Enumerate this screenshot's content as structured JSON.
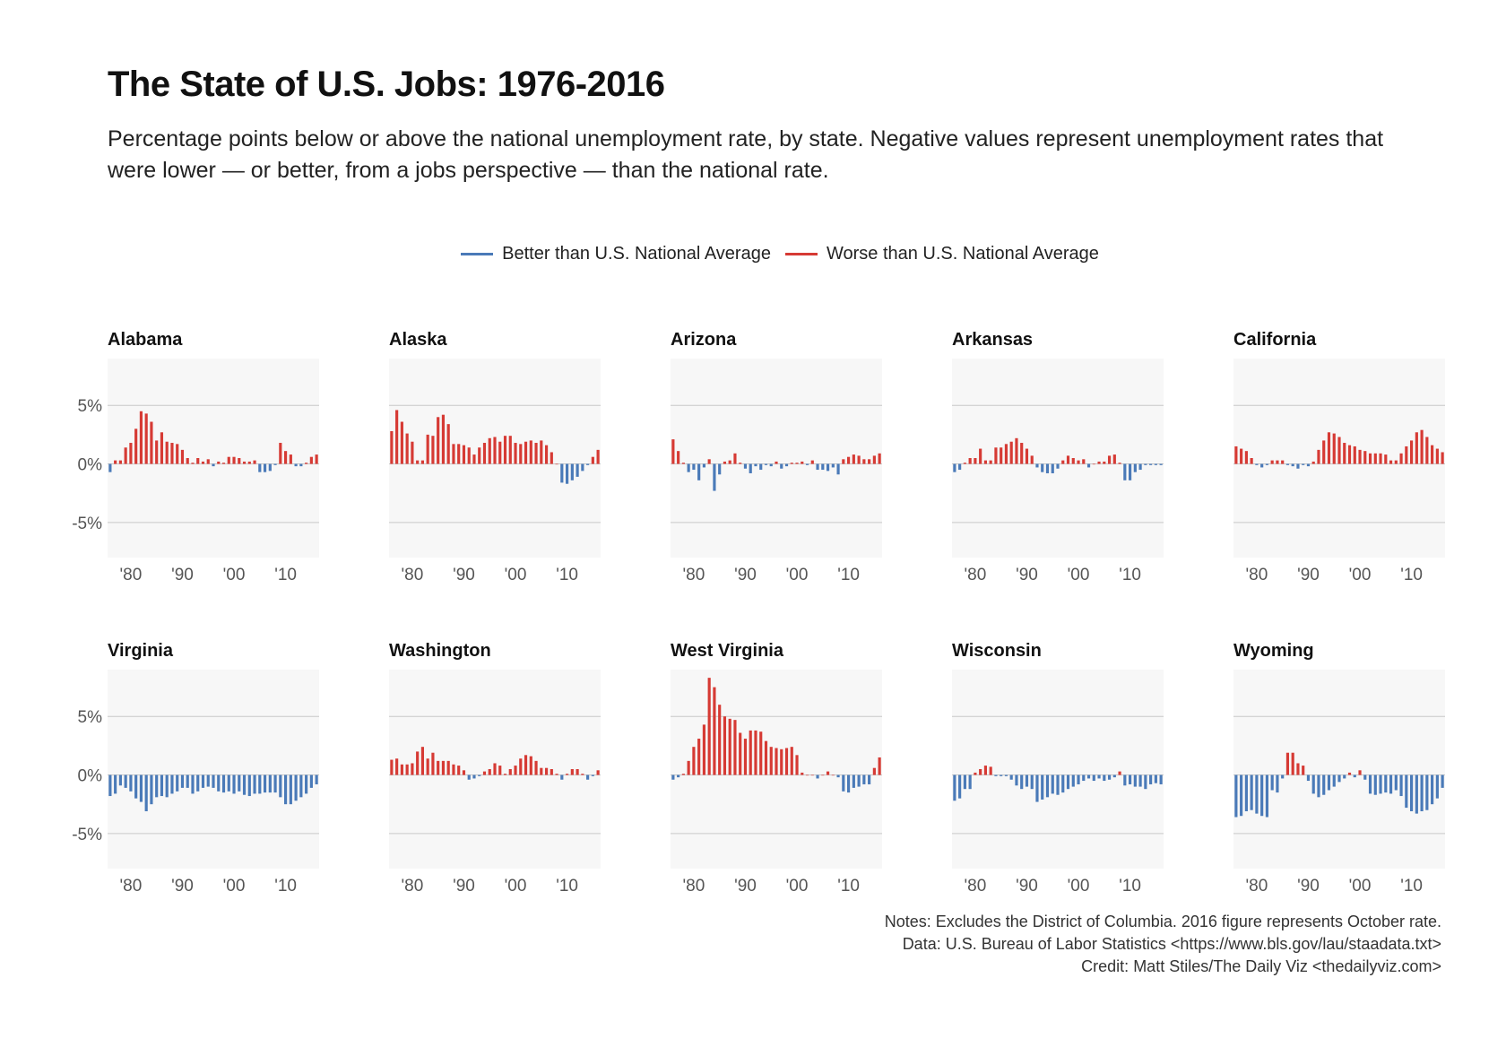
{
  "title": "The State of U.S. Jobs: 1976-2016",
  "subtitle": "Percentage points below or above the national unemployment rate, by state. Negative values represent unemployment rates that were lower — or better, from a jobs perspective — than the national rate.",
  "legend": {
    "better": {
      "label": "Better than U.S. National Average",
      "color": "#4a7ab8"
    },
    "worse": {
      "label": "Worse than U.S. National Average",
      "color": "#d63a34"
    }
  },
  "notes": {
    "line1": "Notes: Excludes the District of Columbia. 2016 figure represents October rate.",
    "line2": "Data: U.S. Bureau of Labor Statistics <https://www.bls.gov/lau/staadata.txt>",
    "line3": "Credit: Matt Stiles/The Daily Viz <thedailyviz.com>"
  },
  "chart_data": {
    "type": "bar",
    "x_start_year": 1976,
    "x_end_year": 2016,
    "ylim": [
      -8,
      9
    ],
    "y_ticks": [
      5,
      0,
      -5
    ],
    "y_tick_labels": [
      "5%",
      "0%",
      "-5%"
    ],
    "x_ticks": [
      1980,
      1990,
      2000,
      2010
    ],
    "x_tick_labels": [
      "'80",
      "'90",
      "'00",
      "'10"
    ],
    "grid": true,
    "legend_position": "top-center",
    "panels": [
      {
        "state": "Alabama",
        "values": [
          -0.7,
          0.3,
          0.3,
          1.4,
          1.8,
          3.0,
          4.5,
          4.3,
          3.6,
          2.0,
          2.7,
          1.9,
          1.8,
          1.7,
          1.2,
          0.5,
          0.1,
          0.5,
          0.2,
          0.4,
          -0.2,
          0.2,
          0.1,
          0.6,
          0.6,
          0.5,
          0.2,
          0.2,
          0.3,
          -0.7,
          -0.7,
          -0.6,
          -0.1,
          1.8,
          1.1,
          0.8,
          -0.2,
          -0.2,
          0.1,
          0.6,
          0.8
        ]
      },
      {
        "state": "Alaska",
        "values": [
          2.8,
          4.6,
          3.6,
          2.6,
          1.9,
          0.3,
          0.3,
          2.5,
          2.4,
          4.0,
          4.2,
          3.4,
          1.7,
          1.7,
          1.6,
          1.4,
          0.8,
          1.4,
          1.8,
          2.2,
          2.3,
          1.9,
          2.4,
          2.4,
          1.8,
          1.7,
          1.9,
          2.0,
          1.8,
          2.0,
          1.6,
          1.0,
          0.0,
          -1.6,
          -1.7,
          -1.4,
          -1.1,
          -0.6,
          -0.1,
          0.6,
          1.2
        ]
      },
      {
        "state": "Arizona",
        "values": [
          2.1,
          1.1,
          0.1,
          -0.7,
          -0.5,
          -1.4,
          -0.3,
          0.4,
          -2.3,
          -0.9,
          0.2,
          0.3,
          0.9,
          0.1,
          -0.4,
          -0.8,
          -0.2,
          -0.5,
          -0.1,
          -0.2,
          0.2,
          -0.4,
          -0.2,
          0.1,
          0.1,
          0.2,
          -0.1,
          0.3,
          -0.5,
          -0.5,
          -0.6,
          -0.3,
          -0.9,
          0.4,
          0.6,
          0.8,
          0.7,
          0.4,
          0.4,
          0.7,
          0.9
        ]
      },
      {
        "state": "Arkansas",
        "values": [
          -0.7,
          -0.5,
          0.1,
          0.5,
          0.5,
          1.3,
          0.3,
          0.3,
          1.4,
          1.4,
          1.7,
          1.9,
          2.2,
          1.8,
          1.3,
          0.7,
          -0.3,
          -0.7,
          -0.8,
          -0.8,
          -0.4,
          0.3,
          0.7,
          0.5,
          0.3,
          0.4,
          -0.3,
          0.0,
          0.2,
          0.2,
          0.7,
          0.8,
          0.1,
          -1.4,
          -1.4,
          -0.7,
          -0.5,
          -0.1,
          -0.1,
          -0.1,
          -0.1
        ]
      },
      {
        "state": "California",
        "values": [
          1.5,
          1.3,
          1.1,
          0.5,
          -0.1,
          -0.3,
          -0.1,
          0.3,
          0.3,
          0.3,
          -0.1,
          -0.2,
          -0.4,
          -0.1,
          -0.2,
          0.2,
          1.2,
          2.0,
          2.7,
          2.6,
          2.3,
          1.8,
          1.6,
          1.5,
          1.2,
          1.1,
          0.9,
          0.9,
          0.9,
          0.8,
          0.3,
          0.3,
          0.9,
          1.5,
          2.0,
          2.7,
          2.9,
          2.3,
          1.6,
          1.3,
          1.0
        ]
      },
      {
        "state": "Virginia",
        "values": [
          -1.8,
          -1.6,
          -0.9,
          -1.1,
          -1.4,
          -2.0,
          -2.3,
          -3.1,
          -2.5,
          -1.9,
          -1.8,
          -1.9,
          -1.6,
          -1.4,
          -1.1,
          -1.1,
          -1.6,
          -1.4,
          -1.1,
          -1.0,
          -1.1,
          -1.4,
          -1.5,
          -1.4,
          -1.6,
          -1.4,
          -1.7,
          -1.8,
          -1.6,
          -1.6,
          -1.5,
          -1.5,
          -1.5,
          -1.9,
          -2.5,
          -2.5,
          -2.2,
          -1.9,
          -1.6,
          -1.1,
          -0.8
        ]
      },
      {
        "state": "Washington",
        "values": [
          1.3,
          1.4,
          0.9,
          0.9,
          1.0,
          2.0,
          2.4,
          1.4,
          1.9,
          1.2,
          1.2,
          1.2,
          0.9,
          0.8,
          0.4,
          -0.4,
          -0.3,
          -0.1,
          0.3,
          0.5,
          1.0,
          0.8,
          0.1,
          0.5,
          0.8,
          1.4,
          1.7,
          1.6,
          1.2,
          0.6,
          0.6,
          0.5,
          0.1,
          -0.4,
          0.1,
          0.5,
          0.5,
          0.1,
          -0.4,
          -0.1,
          0.4
        ]
      },
      {
        "state": "West Virginia",
        "values": [
          -0.4,
          -0.2,
          0.1,
          1.2,
          2.4,
          3.1,
          4.3,
          8.3,
          7.5,
          6.0,
          5.0,
          4.8,
          4.7,
          3.6,
          3.1,
          3.8,
          3.8,
          3.7,
          2.9,
          2.4,
          2.3,
          2.2,
          2.3,
          2.4,
          1.7,
          0.2,
          0.0,
          0.0,
          -0.3,
          0.0,
          0.3,
          0.0,
          -0.2,
          -1.4,
          -1.5,
          -1.1,
          -1.0,
          -0.8,
          -0.8,
          0.6,
          1.5
        ]
      },
      {
        "state": "Wisconsin",
        "values": [
          -2.2,
          -2.0,
          -1.2,
          -1.2,
          0.2,
          0.5,
          0.8,
          0.7,
          -0.1,
          -0.1,
          -0.1,
          -0.4,
          -0.9,
          -1.2,
          -1.0,
          -1.2,
          -2.3,
          -2.1,
          -1.9,
          -1.6,
          -1.7,
          -1.5,
          -1.2,
          -1.0,
          -0.8,
          -0.5,
          -0.3,
          -0.5,
          -0.3,
          -0.5,
          -0.4,
          -0.2,
          0.3,
          -0.9,
          -0.8,
          -1.0,
          -1.0,
          -1.2,
          -0.8,
          -0.7,
          -0.8
        ]
      },
      {
        "state": "Wyoming",
        "values": [
          -3.6,
          -3.5,
          -3.1,
          -3.0,
          -3.3,
          -3.5,
          -3.6,
          -1.3,
          -1.5,
          -0.3,
          1.9,
          1.9,
          1.0,
          0.8,
          -0.5,
          -1.6,
          -1.9,
          -1.7,
          -1.3,
          -1.0,
          -0.6,
          -0.3,
          0.2,
          -0.2,
          0.4,
          -0.4,
          -1.6,
          -1.7,
          -1.6,
          -1.5,
          -1.6,
          -1.3,
          -1.8,
          -2.8,
          -3.1,
          -3.3,
          -3.1,
          -3.0,
          -2.5,
          -2.0,
          -1.1
        ]
      }
    ]
  }
}
